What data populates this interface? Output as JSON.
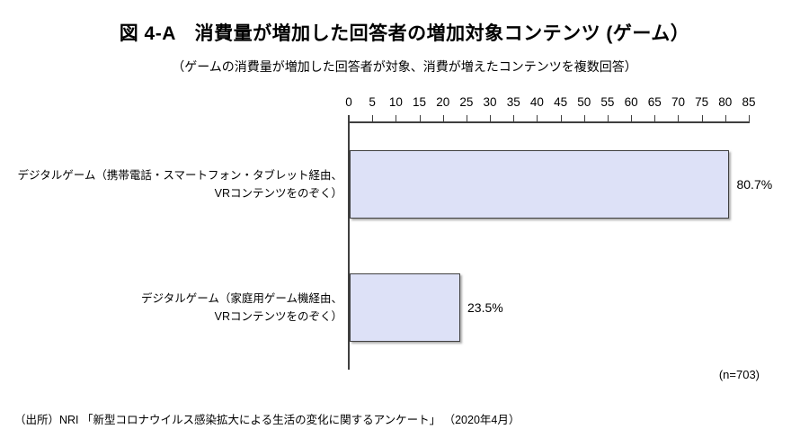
{
  "title": "図 4-A　消費量が増加した回答者の増加対象コンテンツ (ゲーム）",
  "subtitle": "（ゲームの消費量が増加した回答者が対象、消費が増えたコンテンツを複数回答）",
  "footer": {
    "sample_size": "(n=703)",
    "source": "（出所）NRI 「新型コロナウイルス感染拡大による生活の変化に関するアンケート」 （2020年4月）"
  },
  "chart_data": {
    "type": "bar",
    "orientation": "horizontal",
    "axis_position": "top",
    "grid": false,
    "legend": false,
    "categories": [
      "デジタルゲーム（携帯電話・スマートフォン・タブレット経由、\nVRコンテンツをのぞく）",
      "デジタルゲーム（家庭用ゲーム機経由、\nVRコンテンツをのぞく）"
    ],
    "values": [
      80.7,
      23.5
    ],
    "value_labels": [
      "80.7%",
      "23.5%"
    ],
    "xlim": [
      0,
      85
    ],
    "xticks": [
      0,
      5,
      10,
      15,
      20,
      25,
      30,
      35,
      40,
      45,
      50,
      55,
      60,
      65,
      70,
      75,
      80,
      85
    ],
    "bar_fill_color": "#dde1f7",
    "bar_border_color": "#404040",
    "axis_color": "#3f3f3f"
  }
}
